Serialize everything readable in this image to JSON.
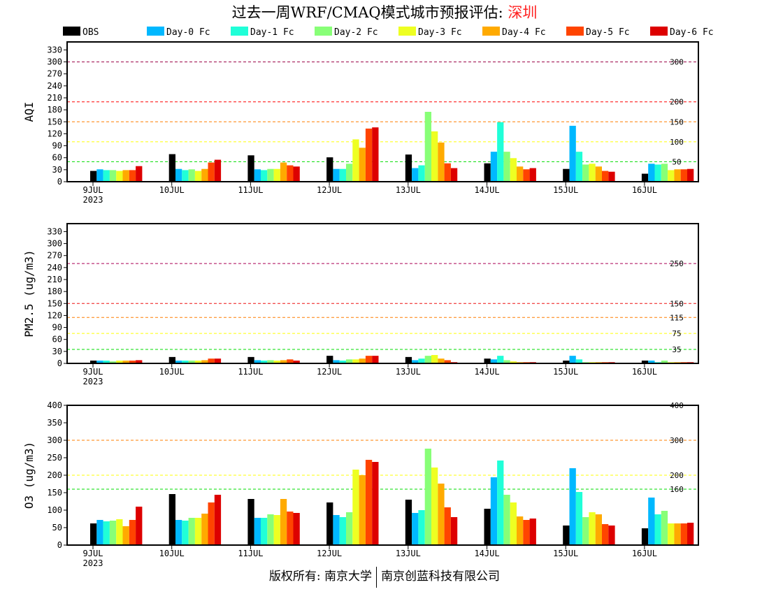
{
  "title": {
    "main": "过去一周WRF/CMAQ模式城市预报评估: ",
    "city": "深圳"
  },
  "footer": {
    "left": "版权所有: 南京大学",
    "right": "南京创蓝科技有限公司"
  },
  "chart_data": [
    {
      "type": "bar",
      "ylabel": "AQI",
      "categories": [
        "9JUL",
        "10JUL",
        "11JUL",
        "12JUL",
        "13JUL",
        "14JUL",
        "15JUL",
        "16JUL"
      ],
      "year_label": "2023",
      "ylim": [
        0,
        350
      ],
      "yticks": [
        0,
        30,
        60,
        90,
        120,
        150,
        180,
        210,
        240,
        270,
        300,
        330
      ],
      "ref_lines": [
        {
          "value": 300,
          "label": "300",
          "color": "#990044"
        },
        {
          "value": 200,
          "label": "200",
          "color": "#ff0000"
        },
        {
          "value": 150,
          "label": "150",
          "color": "#ff7f00"
        },
        {
          "value": 100,
          "label": "100",
          "color": "#ffff00"
        },
        {
          "value": 50,
          "label": "50",
          "color": "#00dd00"
        }
      ],
      "series": [
        {
          "name": "OBS",
          "values": [
            27,
            69,
            66,
            61,
            68,
            46,
            32,
            20
          ]
        },
        {
          "name": "Day-0 Fc",
          "values": [
            31,
            32,
            31,
            32,
            34,
            75,
            140,
            45
          ]
        },
        {
          "name": "Day-1 Fc",
          "values": [
            29,
            29,
            29,
            32,
            41,
            149,
            75,
            43
          ]
        },
        {
          "name": "Day-2 Fc",
          "values": [
            29,
            31,
            32,
            45,
            175,
            75,
            43,
            45
          ]
        },
        {
          "name": "Day-3 Fc",
          "values": [
            27,
            27,
            32,
            106,
            126,
            59,
            45,
            29
          ]
        },
        {
          "name": "Day-4 Fc",
          "values": [
            29,
            32,
            48,
            85,
            98,
            38,
            38,
            31
          ]
        },
        {
          "name": "Day-5 Fc",
          "values": [
            29,
            48,
            41,
            133,
            46,
            31,
            27,
            31
          ]
        },
        {
          "name": "Day-6 Fc",
          "values": [
            39,
            55,
            38,
            136,
            34,
            34,
            25,
            32
          ]
        }
      ]
    },
    {
      "type": "bar",
      "ylabel": "PM2.5 (ug/m3)",
      "categories": [
        "9JUL",
        "10JUL",
        "11JUL",
        "12JUL",
        "13JUL",
        "14JUL",
        "15JUL",
        "16JUL"
      ],
      "year_label": "2023",
      "ylim": [
        0,
        350
      ],
      "yticks": [
        0,
        30,
        60,
        90,
        120,
        150,
        180,
        210,
        240,
        270,
        300,
        330
      ],
      "ref_lines": [
        {
          "value": 250,
          "label": "250",
          "color": "#aa0055"
        },
        {
          "value": 150,
          "label": "150",
          "color": "#ee1111"
        },
        {
          "value": 115,
          "label": "115",
          "color": "#ff7f00"
        },
        {
          "value": 75,
          "label": "75",
          "color": "#ffff00"
        },
        {
          "value": 35,
          "label": "35",
          "color": "#00dd00"
        }
      ],
      "series": [
        {
          "name": "OBS",
          "values": [
            7,
            16,
            16,
            19,
            16,
            12,
            7,
            7
          ]
        },
        {
          "name": "Day-0 Fc",
          "values": [
            7,
            7,
            8,
            8,
            8,
            10,
            19,
            7
          ]
        },
        {
          "name": "Day-1 Fc",
          "values": [
            7,
            7,
            7,
            7,
            12,
            19,
            10,
            3
          ]
        },
        {
          "name": "Day-2 Fc",
          "values": [
            5,
            7,
            8,
            10,
            19,
            8,
            3,
            7
          ]
        },
        {
          "name": "Day-3 Fc",
          "values": [
            7,
            7,
            7,
            10,
            21,
            5,
            3,
            3
          ]
        },
        {
          "name": "Day-4 Fc",
          "values": [
            7,
            8,
            8,
            12,
            12,
            3,
            3,
            3
          ]
        },
        {
          "name": "Day-5 Fc",
          "values": [
            7,
            12,
            10,
            19,
            8,
            3,
            3,
            3
          ]
        },
        {
          "name": "Day-6 Fc",
          "values": [
            8,
            12,
            7,
            19,
            3,
            3,
            3,
            3
          ]
        }
      ]
    },
    {
      "type": "bar",
      "ylabel": "O3 (ug/m3)",
      "categories": [
        "9JUL",
        "10JUL",
        "11JUL",
        "12JUL",
        "13JUL",
        "14JUL",
        "15JUL",
        "16JUL"
      ],
      "year_label": "2023",
      "ylim": [
        0,
        400
      ],
      "yticks": [
        0,
        50,
        100,
        150,
        200,
        250,
        300,
        350,
        400
      ],
      "ref_lines": [
        {
          "value": 400,
          "label": "400",
          "color": "#ff0000"
        },
        {
          "value": 300,
          "label": "300",
          "color": "#ff7f00"
        },
        {
          "value": 200,
          "label": "200",
          "color": "#ffff00"
        },
        {
          "value": 160,
          "label": "160",
          "color": "#00dd00"
        }
      ],
      "series": [
        {
          "name": "OBS",
          "values": [
            62,
            146,
            132,
            122,
            130,
            104,
            56,
            48
          ]
        },
        {
          "name": "Day-0 Fc",
          "values": [
            72,
            72,
            78,
            86,
            92,
            194,
            220,
            136
          ]
        },
        {
          "name": "Day-1 Fc",
          "values": [
            68,
            70,
            78,
            80,
            100,
            242,
            152,
            88
          ]
        },
        {
          "name": "Day-2 Fc",
          "values": [
            70,
            78,
            88,
            94,
            276,
            144,
            80,
            98
          ]
        },
        {
          "name": "Day-3 Fc",
          "values": [
            74,
            78,
            86,
            216,
            222,
            122,
            94,
            62
          ]
        },
        {
          "name": "Day-4 Fc",
          "values": [
            54,
            90,
            132,
            200,
            176,
            82,
            88,
            62
          ]
        },
        {
          "name": "Day-5 Fc",
          "values": [
            72,
            122,
            96,
            244,
            108,
            72,
            60,
            62
          ]
        },
        {
          "name": "Day-6 Fc",
          "values": [
            110,
            144,
            92,
            238,
            80,
            76,
            56,
            64
          ]
        }
      ]
    }
  ],
  "legend": [
    {
      "name": "OBS",
      "color": "#000000"
    },
    {
      "name": "Day-0 Fc",
      "color": "#00b8ff"
    },
    {
      "name": "Day-1 Fc",
      "color": "#20ffd8"
    },
    {
      "name": "Day-2 Fc",
      "color": "#88ff77"
    },
    {
      "name": "Day-3 Fc",
      "color": "#eeff22"
    },
    {
      "name": "Day-4 Fc",
      "color": "#ffaa00"
    },
    {
      "name": "Day-5 Fc",
      "color": "#ff4400"
    },
    {
      "name": "Day-6 Fc",
      "color": "#dd0000"
    }
  ]
}
